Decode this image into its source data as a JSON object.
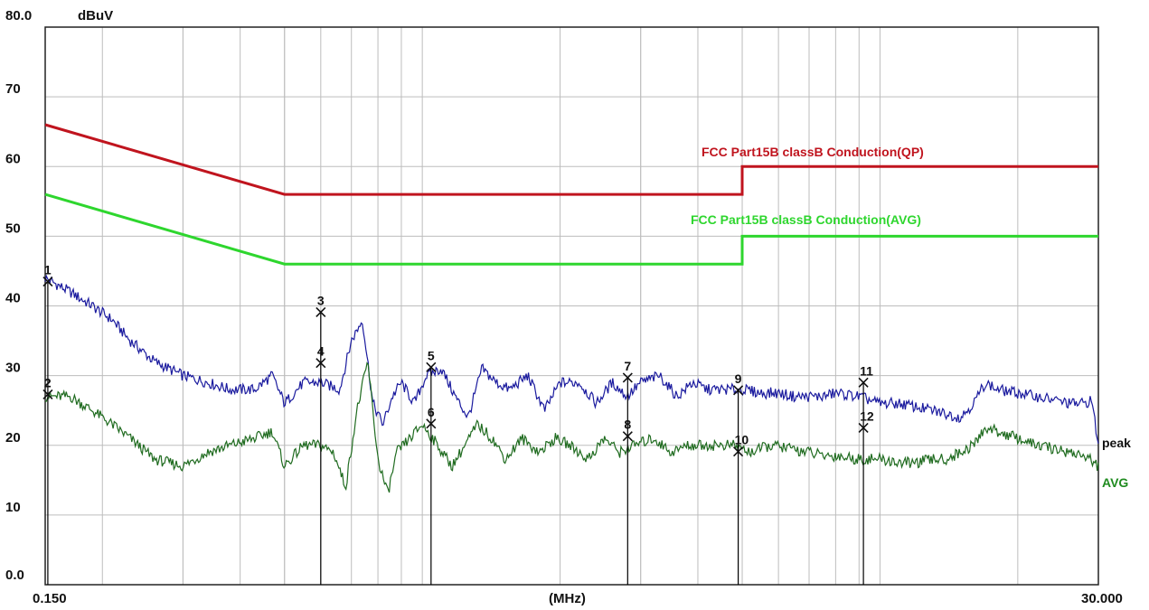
{
  "chart_data": {
    "type": "line",
    "xlabel": "(MHz)",
    "ylabel": "dBuV",
    "xscale": "log",
    "xlim": [
      0.15,
      30.0
    ],
    "ylim": [
      0.0,
      80.0
    ],
    "x_min_label": "0.150",
    "x_max_label": "30.000",
    "y_tick_labels": [
      "80.0",
      "70",
      "60",
      "50",
      "40",
      "30",
      "20",
      "10",
      "0.0"
    ],
    "y_ticks": [
      80,
      70,
      60,
      50,
      40,
      30,
      20,
      10,
      0
    ],
    "grid": true,
    "limits": [
      {
        "name": "FCC  Part15B classB Conduction(QP)",
        "color": "#c0141e",
        "points": [
          [
            0.15,
            66
          ],
          [
            0.5,
            56
          ],
          [
            5.0,
            56
          ],
          [
            5.0,
            60
          ],
          [
            30.0,
            60
          ]
        ]
      },
      {
        "name": "FCC  Part15B classB Conduction(AVG)",
        "color": "#2ed62e",
        "points": [
          [
            0.15,
            56
          ],
          [
            0.5,
            46
          ],
          [
            5.0,
            46
          ],
          [
            5.0,
            50
          ],
          [
            30.0,
            50
          ]
        ]
      }
    ],
    "series": [
      {
        "name": "peak",
        "color": "#1a1a9e",
        "x": [
          0.15,
          0.17,
          0.19,
          0.21,
          0.23,
          0.26,
          0.3,
          0.34,
          0.38,
          0.43,
          0.47,
          0.5,
          0.55,
          0.6,
          0.66,
          0.7,
          0.74,
          0.78,
          0.82,
          0.86,
          0.9,
          0.96,
          1.02,
          1.1,
          1.18,
          1.26,
          1.35,
          1.45,
          1.55,
          1.7,
          1.85,
          2.0,
          2.2,
          2.4,
          2.6,
          2.8,
          3.0,
          3.3,
          3.6,
          3.9,
          4.2,
          4.5,
          5.0,
          5.5,
          6.0,
          6.5,
          7.0,
          7.5,
          8.0,
          9.0,
          10.0,
          11.0,
          12.0,
          13.0,
          14.0,
          15.0,
          16.0,
          17.0,
          18.0,
          20.0,
          22.0,
          24.0,
          26.0,
          28.0,
          29.0,
          30.0
        ],
        "y": [
          44,
          42,
          40,
          38,
          35,
          32,
          30,
          29,
          28,
          28,
          30,
          26,
          29,
          29,
          28,
          35,
          38,
          26,
          23,
          27,
          29,
          26,
          30,
          31,
          27,
          24,
          31,
          29,
          28,
          30,
          25,
          29,
          29,
          26,
          29,
          27,
          29,
          30,
          27,
          29,
          28,
          28,
          28,
          27.5,
          27.5,
          27,
          27,
          27,
          27.5,
          27,
          26,
          26,
          25.5,
          25,
          24.5,
          24,
          26,
          29,
          28,
          27.5,
          27,
          26.5,
          26,
          26,
          26.5,
          20
        ]
      },
      {
        "name": "AVG",
        "color": "#1f6b1f",
        "x": [
          0.15,
          0.17,
          0.19,
          0.21,
          0.23,
          0.26,
          0.3,
          0.34,
          0.38,
          0.43,
          0.47,
          0.5,
          0.55,
          0.6,
          0.64,
          0.68,
          0.72,
          0.76,
          0.8,
          0.84,
          0.88,
          0.94,
          1.0,
          1.08,
          1.16,
          1.24,
          1.32,
          1.42,
          1.52,
          1.65,
          1.8,
          1.95,
          2.1,
          2.3,
          2.5,
          2.7,
          2.9,
          3.2,
          3.5,
          3.8,
          4.1,
          4.4,
          4.8,
          5.2,
          5.8,
          6.4,
          7.0,
          7.5,
          8.0,
          9.0,
          10.0,
          11.0,
          12.0,
          13.0,
          14.0,
          15.0,
          16.0,
          17.0,
          18.0,
          20.0,
          22.0,
          24.0,
          26.0,
          28.0,
          30.0
        ],
        "y": [
          27,
          27,
          25,
          23,
          21,
          18,
          17,
          19,
          20,
          21,
          22,
          17,
          20,
          20,
          19,
          14,
          25,
          32,
          18,
          13,
          19,
          21,
          23,
          20,
          17,
          20,
          23,
          21,
          18,
          21,
          19,
          21,
          20,
          18,
          21,
          19,
          20,
          21,
          19,
          20,
          20,
          20,
          20,
          19,
          20,
          19.5,
          19,
          18.5,
          18.5,
          18,
          18,
          17.5,
          17.5,
          18,
          18,
          19,
          20,
          22.5,
          22,
          21,
          20,
          19.5,
          19,
          18.5,
          17
        ]
      }
    ],
    "markers": [
      {
        "label": "1",
        "x": 0.152,
        "y": 43.5
      },
      {
        "label": "2",
        "x": 0.152,
        "y": 27.3
      },
      {
        "label": "3",
        "x": 0.6,
        "y": 39.1
      },
      {
        "label": "4",
        "x": 0.6,
        "y": 31.8
      },
      {
        "label": "5",
        "x": 1.045,
        "y": 31.2
      },
      {
        "label": "6",
        "x": 1.045,
        "y": 23.1
      },
      {
        "label": "7",
        "x": 2.81,
        "y": 29.7
      },
      {
        "label": "8",
        "x": 2.81,
        "y": 21.3
      },
      {
        "label": "9",
        "x": 4.9,
        "y": 27.9
      },
      {
        "label": "10",
        "x": 4.9,
        "y": 19.1
      },
      {
        "label": "11",
        "x": 9.2,
        "y": 29.0
      },
      {
        "label": "12",
        "x": 9.2,
        "y": 22.5
      }
    ]
  }
}
